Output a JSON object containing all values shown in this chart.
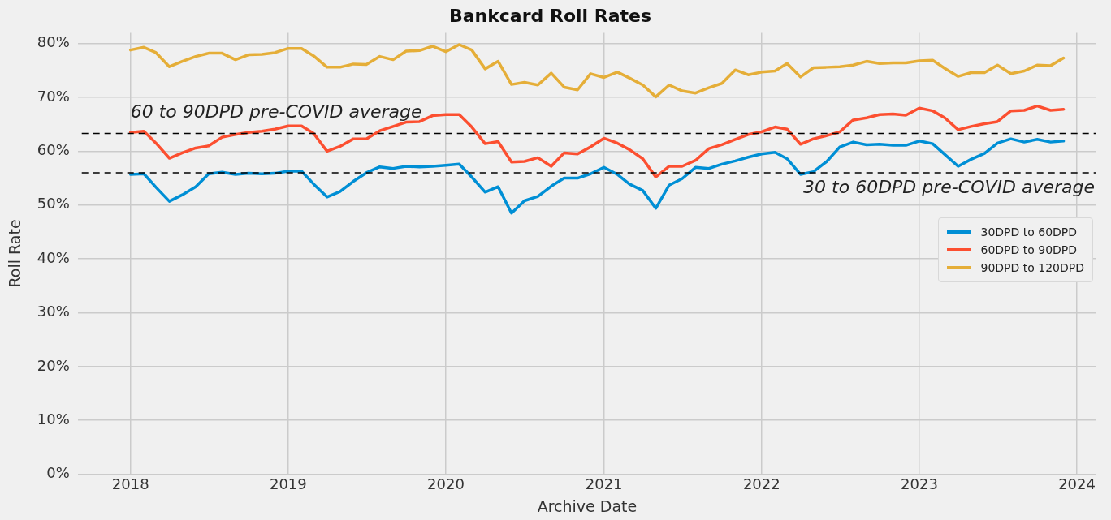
{
  "chart_data": {
    "type": "line",
    "title": "Bankcard Roll Rates",
    "xlabel": "Archive Date",
    "ylabel": "Roll Rate",
    "x": [
      "2018-01",
      "2018-02",
      "2018-03",
      "2018-04",
      "2018-05",
      "2018-06",
      "2018-07",
      "2018-08",
      "2018-09",
      "2018-10",
      "2018-11",
      "2018-12",
      "2019-01",
      "2019-02",
      "2019-03",
      "2019-04",
      "2019-05",
      "2019-06",
      "2019-07",
      "2019-08",
      "2019-09",
      "2019-10",
      "2019-11",
      "2019-12",
      "2020-01",
      "2020-02",
      "2020-03",
      "2020-04",
      "2020-05",
      "2020-06",
      "2020-07",
      "2020-08",
      "2020-09",
      "2020-10",
      "2020-11",
      "2020-12",
      "2021-01",
      "2021-02",
      "2021-03",
      "2021-04",
      "2021-05",
      "2021-06",
      "2021-07",
      "2021-08",
      "2021-09",
      "2021-10",
      "2021-11",
      "2021-12",
      "2022-01",
      "2022-02",
      "2022-03",
      "2022-04",
      "2022-05",
      "2022-06",
      "2022-07",
      "2022-08",
      "2022-09",
      "2022-10",
      "2022-11",
      "2022-12",
      "2023-01",
      "2023-02",
      "2023-03",
      "2023-04",
      "2023-05",
      "2023-06",
      "2023-07",
      "2023-08",
      "2023-09",
      "2023-10",
      "2023-11",
      "2023-12"
    ],
    "series": [
      {
        "name": "30DPD to 60DPD",
        "color": "#008fd5",
        "values": [
          55.7,
          55.8,
          53.3,
          50.7,
          51.9,
          53.4,
          55.8,
          56.1,
          55.7,
          55.9,
          55.8,
          55.9,
          56.3,
          56.3,
          53.9,
          51.5,
          52.5,
          54.4,
          56.0,
          57.1,
          56.8,
          57.2,
          57.1,
          57.2,
          57.4,
          57.6,
          55.2,
          52.4,
          53.4,
          48.5,
          50.8,
          51.6,
          53.5,
          55.0,
          55.0,
          55.8,
          57.0,
          55.7,
          53.9,
          52.7,
          49.4,
          53.7,
          54.9,
          57.0,
          56.8,
          57.6,
          58.2,
          58.9,
          59.5,
          59.8,
          58.6,
          55.7,
          56.2,
          58.1,
          60.8,
          61.7,
          61.2,
          61.3,
          61.1,
          61.1,
          61.9,
          61.4,
          59.4,
          57.2,
          58.5,
          59.6,
          61.5,
          62.3,
          61.7,
          62.2,
          61.7,
          61.9
        ]
      },
      {
        "name": "60DPD to 90DPD",
        "color": "#fc4f30",
        "values": [
          63.5,
          63.7,
          61.5,
          58.7,
          59.7,
          60.6,
          61.0,
          62.6,
          63.1,
          63.5,
          63.7,
          64.1,
          64.7,
          64.7,
          63.3,
          60.0,
          60.9,
          62.3,
          62.3,
          63.8,
          64.6,
          65.4,
          65.5,
          66.6,
          66.8,
          66.8,
          64.5,
          61.4,
          61.8,
          58.0,
          58.1,
          58.8,
          57.2,
          59.7,
          59.5,
          60.8,
          62.4,
          61.5,
          60.3,
          58.6,
          55.2,
          57.2,
          57.2,
          58.3,
          60.5,
          61.2,
          62.2,
          63.1,
          63.6,
          64.5,
          64.1,
          61.3,
          62.3,
          62.9,
          63.6,
          65.8,
          66.2,
          66.8,
          66.9,
          66.7,
          68.0,
          67.5,
          66.2,
          64.0,
          64.6,
          65.1,
          65.5,
          67.5,
          67.6,
          68.4,
          67.6,
          67.8
        ]
      },
      {
        "name": "90DPD to 120DPD",
        "color": "#e5ae38",
        "values": [
          78.8,
          79.3,
          78.3,
          75.7,
          76.7,
          77.6,
          78.2,
          78.2,
          77.0,
          77.9,
          78.0,
          78.3,
          79.1,
          79.1,
          77.7,
          75.6,
          75.6,
          76.2,
          76.1,
          77.6,
          77.0,
          78.6,
          78.7,
          79.5,
          78.5,
          79.8,
          78.8,
          75.3,
          76.7,
          72.4,
          72.8,
          72.3,
          74.5,
          71.9,
          71.4,
          74.4,
          73.7,
          74.7,
          73.6,
          72.3,
          70.1,
          72.3,
          71.2,
          70.8,
          71.8,
          72.6,
          75.1,
          74.2,
          74.7,
          74.9,
          76.3,
          73.8,
          75.5,
          75.6,
          75.7,
          76.0,
          76.7,
          76.3,
          76.4,
          76.4,
          76.8,
          76.9,
          75.4,
          73.9,
          74.6,
          74.6,
          76.0,
          74.4,
          74.9,
          76.0,
          75.9,
          77.3
        ]
      }
    ],
    "xlim": [
      "2017-09-01",
      "2024-02-15"
    ],
    "xticks": [
      {
        "value": "2018-01-01",
        "label": "2018"
      },
      {
        "value": "2019-01-01",
        "label": "2019"
      },
      {
        "value": "2020-01-01",
        "label": "2020"
      },
      {
        "value": "2021-01-01",
        "label": "2021"
      },
      {
        "value": "2022-01-01",
        "label": "2022"
      },
      {
        "value": "2023-01-01",
        "label": "2023"
      },
      {
        "value": "2024-01-01",
        "label": "2024"
      }
    ],
    "ylim": [
      0,
      82
    ],
    "yticks": [
      {
        "value": 0,
        "label": "0%"
      },
      {
        "value": 10,
        "label": "10%"
      },
      {
        "value": 20,
        "label": "20%"
      },
      {
        "value": 30,
        "label": "30%"
      },
      {
        "value": 40,
        "label": "40%"
      },
      {
        "value": 50,
        "label": "50%"
      },
      {
        "value": 60,
        "label": "60%"
      },
      {
        "value": 70,
        "label": "70%"
      },
      {
        "value": 80,
        "label": "80%"
      }
    ],
    "ref_lines": [
      {
        "axis": "y",
        "value": 63.3,
        "label": "60 to 90DPD pre-COVID average",
        "color": "#000000",
        "line_style": "dashed"
      },
      {
        "axis": "y",
        "value": 56.0,
        "label": "30 to 60DPD pre-COVID average",
        "color": "#000000",
        "line_style": "dashed"
      }
    ],
    "grid": true,
    "legend": "right",
    "marker": "none",
    "line_style": "solid"
  }
}
